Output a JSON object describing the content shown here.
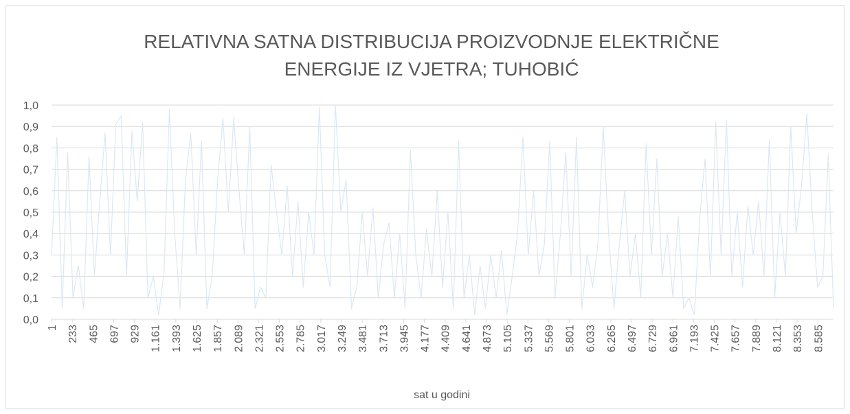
{
  "chart_data": {
    "type": "line",
    "title": [
      "RELATIVNA SATNA DISTRIBUCIJA PROIZVODNJE ELEKTRIČNE",
      "ENERGIJE IZ VJETRA; TUHOBIĆ"
    ],
    "x_label": "sat u godini",
    "x": [
      1,
      61,
      121,
      181,
      241,
      301,
      361,
      421,
      481,
      541,
      601,
      661,
      721,
      781,
      841,
      901,
      961,
      1021,
      1081,
      1141,
      1201,
      1261,
      1321,
      1381,
      1441,
      1501,
      1561,
      1621,
      1681,
      1741,
      1801,
      1861,
      1921,
      1981,
      2041,
      2101,
      2161,
      2221,
      2281,
      2341,
      2401,
      2461,
      2521,
      2581,
      2641,
      2701,
      2761,
      2821,
      2881,
      2941,
      3001,
      3061,
      3121,
      3181,
      3241,
      3301,
      3361,
      3421,
      3481,
      3541,
      3601,
      3661,
      3721,
      3781,
      3841,
      3901,
      3961,
      4021,
      4081,
      4141,
      4201,
      4261,
      4321,
      4381,
      4441,
      4501,
      4561,
      4621,
      4681,
      4741,
      4801,
      4861,
      4921,
      4981,
      5041,
      5101,
      5161,
      5221,
      5281,
      5341,
      5401,
      5461,
      5521,
      5581,
      5641,
      5701,
      5761,
      5821,
      5881,
      5941,
      6001,
      6061,
      6121,
      6181,
      6241,
      6301,
      6361,
      6421,
      6481,
      6541,
      6601,
      6661,
      6721,
      6781,
      6841,
      6901,
      6961,
      7021,
      7081,
      7141,
      7201,
      7261,
      7321,
      7381,
      7441,
      7501,
      7561,
      7621,
      7681,
      7741,
      7801,
      7861,
      7921,
      7981,
      8041,
      8101,
      8161,
      8221,
      8281,
      8341,
      8401,
      8461,
      8521,
      8581,
      8641,
      8701,
      8760
    ],
    "series": [
      {
        "color": "#dae8f5",
        "values": [
          0.3,
          0.85,
          0.05,
          0.78,
          0.1,
          0.25,
          0.05,
          0.76,
          0.2,
          0.55,
          0.87,
          0.3,
          0.91,
          0.95,
          0.2,
          0.88,
          0.55,
          0.92,
          0.1,
          0.2,
          0.02,
          0.22,
          0.98,
          0.4,
          0.05,
          0.65,
          0.87,
          0.3,
          0.83,
          0.05,
          0.2,
          0.65,
          0.94,
          0.5,
          0.94,
          0.6,
          0.3,
          0.9,
          0.05,
          0.15,
          0.1,
          0.72,
          0.5,
          0.3,
          0.62,
          0.2,
          0.55,
          0.15,
          0.5,
          0.3,
          0.99,
          0.3,
          0.15,
          1.0,
          0.5,
          0.65,
          0.05,
          0.15,
          0.5,
          0.2,
          0.52,
          0.1,
          0.35,
          0.45,
          0.1,
          0.4,
          0.05,
          0.79,
          0.3,
          0.1,
          0.42,
          0.2,
          0.6,
          0.15,
          0.5,
          0.05,
          0.83,
          0.1,
          0.3,
          0.02,
          0.25,
          0.05,
          0.3,
          0.1,
          0.32,
          0.02,
          0.2,
          0.4,
          0.85,
          0.3,
          0.6,
          0.2,
          0.35,
          0.83,
          0.1,
          0.4,
          0.78,
          0.2,
          0.85,
          0.05,
          0.3,
          0.15,
          0.35,
          0.9,
          0.4,
          0.05,
          0.35,
          0.6,
          0.2,
          0.4,
          0.1,
          0.82,
          0.3,
          0.75,
          0.2,
          0.4,
          0.1,
          0.48,
          0.05,
          0.1,
          0.02,
          0.47,
          0.75,
          0.2,
          0.92,
          0.3,
          0.93,
          0.2,
          0.5,
          0.15,
          0.53,
          0.3,
          0.55,
          0.2,
          0.84,
          0.1,
          0.5,
          0.2,
          0.9,
          0.4,
          0.62,
          0.96,
          0.5,
          0.15,
          0.2,
          0.77,
          0.05
        ]
      }
    ],
    "xlim": [
      1,
      8760
    ],
    "xticks": [
      1,
      233,
      465,
      697,
      929,
      {
        "value": 1161,
        "label": "1.161"
      },
      {
        "value": 1393,
        "label": "1.393"
      },
      {
        "value": 1625,
        "label": "1.625"
      },
      {
        "value": 1857,
        "label": "1.857"
      },
      {
        "value": 2089,
        "label": "2.089"
      },
      {
        "value": 2321,
        "label": "2.321"
      },
      {
        "value": 2553,
        "label": "2.553"
      },
      {
        "value": 2785,
        "label": "2.785"
      },
      {
        "value": 3017,
        "label": "3.017"
      },
      {
        "value": 3249,
        "label": "3.249"
      },
      {
        "value": 3481,
        "label": "3.481"
      },
      {
        "value": 3713,
        "label": "3.713"
      },
      {
        "value": 3945,
        "label": "3.945"
      },
      {
        "value": 4177,
        "label": "4.177"
      },
      {
        "value": 4409,
        "label": "4.409"
      },
      {
        "value": 4641,
        "label": "4.641"
      },
      {
        "value": 4873,
        "label": "4.873"
      },
      {
        "value": 5105,
        "label": "5.105"
      },
      {
        "value": 5337,
        "label": "5.337"
      },
      {
        "value": 5569,
        "label": "5.569"
      },
      {
        "value": 5801,
        "label": "5.801"
      },
      {
        "value": 6033,
        "label": "6.033"
      },
      {
        "value": 6265,
        "label": "6.265"
      },
      {
        "value": 6497,
        "label": "6.497"
      },
      {
        "value": 6729,
        "label": "6.729"
      },
      {
        "value": 6961,
        "label": "6.961"
      },
      {
        "value": 7193,
        "label": "7.193"
      },
      {
        "value": 7425,
        "label": "7.425"
      },
      {
        "value": 7657,
        "label": "7.657"
      },
      {
        "value": 7889,
        "label": "7.889"
      },
      {
        "value": 8121,
        "label": "8.121"
      },
      {
        "value": 8353,
        "label": "8.353"
      },
      {
        "value": 8585,
        "label": "8.585"
      }
    ],
    "ylim": [
      0,
      1
    ],
    "yticks": [
      {
        "value": 0,
        "label": "0,0"
      },
      {
        "value": 0.1,
        "label": "0,1"
      },
      {
        "value": 0.2,
        "label": "0,2"
      },
      {
        "value": 0.3,
        "label": "0,3"
      },
      {
        "value": 0.4,
        "label": "0,4"
      },
      {
        "value": 0.5,
        "label": "0,5"
      },
      {
        "value": 0.6,
        "label": "0,6"
      },
      {
        "value": 0.7,
        "label": "0,7"
      },
      {
        "value": 0.8,
        "label": "0,8"
      },
      {
        "value": 0.9,
        "label": "0,9"
      },
      {
        "value": 1,
        "label": "1,0"
      }
    ],
    "grid": true
  }
}
